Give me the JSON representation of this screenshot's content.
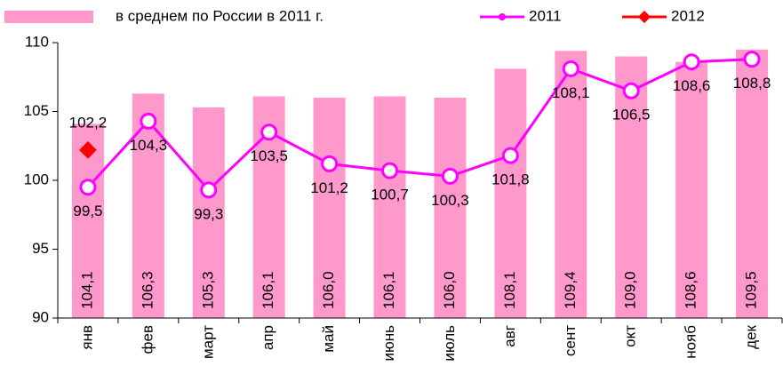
{
  "chart_data": {
    "type": "bar",
    "categories": [
      "янв",
      "фев",
      "март",
      "апр",
      "май",
      "июнь",
      "июль",
      "авг",
      "сент",
      "окт",
      "нояб",
      "дек"
    ],
    "series": [
      {
        "name": "в среднем по России в 2011 г.",
        "type": "bar",
        "color": "#ff99cc",
        "values": [
          104.1,
          106.3,
          105.3,
          106.1,
          106.0,
          106.1,
          106.0,
          108.1,
          109.4,
          109.0,
          108.6,
          109.5
        ],
        "value_labels": [
          "104,1",
          "106,3",
          "105,3",
          "106,1",
          "106,0",
          "106,1",
          "106,0",
          "108,1",
          "109,4",
          "109,0",
          "108,6",
          "109,5"
        ]
      },
      {
        "name": "2011",
        "type": "line",
        "color": "#ff00ff",
        "values": [
          99.5,
          104.3,
          99.3,
          103.5,
          101.2,
          100.7,
          100.3,
          101.8,
          108.1,
          106.5,
          108.6,
          108.8
        ],
        "value_labels": [
          "99,5",
          "104,3",
          "99,3",
          "103,5",
          "101,2",
          "100,7",
          "100,3",
          "101,8",
          "108,1",
          "106,5",
          "108,6",
          "108,8"
        ]
      },
      {
        "name": "2012",
        "type": "line",
        "color": "#ff0000",
        "values": [
          102.2,
          null,
          null,
          null,
          null,
          null,
          null,
          null,
          null,
          null,
          null,
          null
        ],
        "value_labels": [
          "102,2",
          null,
          null,
          null,
          null,
          null,
          null,
          null,
          null,
          null,
          null,
          null
        ]
      }
    ],
    "ylim": [
      90,
      110
    ],
    "yticks": [
      90,
      95,
      100,
      105,
      110
    ],
    "grid": false
  }
}
